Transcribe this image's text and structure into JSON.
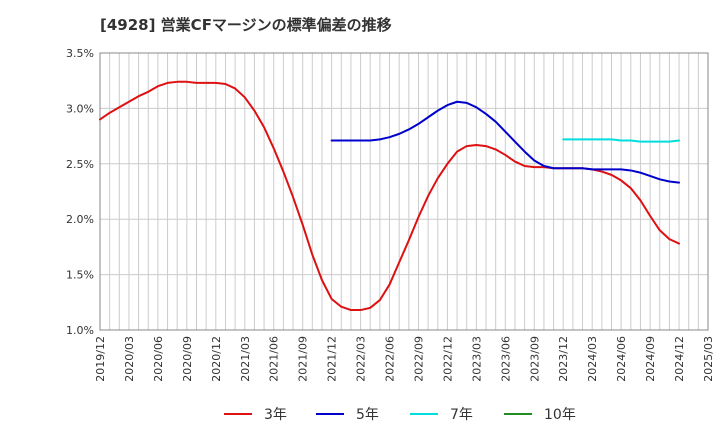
{
  "chart_data": {
    "type": "line",
    "title": "[4928]  営業CFマージンの標準偏差の推移",
    "xlabel": "",
    "ylabel": "",
    "ylim": [
      1.0,
      3.5
    ],
    "y_ticks": [
      "1.0%",
      "1.5%",
      "2.0%",
      "2.5%",
      "3.0%",
      "3.5%"
    ],
    "x_ticks": [
      "2019/12",
      "2020/03",
      "2020/06",
      "2020/09",
      "2020/12",
      "2021/03",
      "2021/06",
      "2021/09",
      "2021/12",
      "2022/03",
      "2022/06",
      "2022/09",
      "2022/12",
      "2023/03",
      "2023/06",
      "2023/09",
      "2023/12",
      "2024/03",
      "2024/06",
      "2024/09",
      "2024/12",
      "2025/03"
    ],
    "grid": true,
    "legend_position": "bottom",
    "series": [
      {
        "name": "3年",
        "color": "#dd1111",
        "points": [
          [
            "2019/12",
            2.9
          ],
          [
            "2020/01",
            2.96
          ],
          [
            "2020/02",
            3.01
          ],
          [
            "2020/03",
            3.06
          ],
          [
            "2020/04",
            3.11
          ],
          [
            "2020/05",
            3.15
          ],
          [
            "2020/06",
            3.2
          ],
          [
            "2020/07",
            3.23
          ],
          [
            "2020/08",
            3.24
          ],
          [
            "2020/09",
            3.24
          ],
          [
            "2020/10",
            3.23
          ],
          [
            "2020/11",
            3.23
          ],
          [
            "2020/12",
            3.23
          ],
          [
            "2021/01",
            3.22
          ],
          [
            "2021/02",
            3.18
          ],
          [
            "2021/03",
            3.1
          ],
          [
            "2021/04",
            2.98
          ],
          [
            "2021/05",
            2.83
          ],
          [
            "2021/06",
            2.64
          ],
          [
            "2021/07",
            2.43
          ],
          [
            "2021/08",
            2.2
          ],
          [
            "2021/09",
            1.95
          ],
          [
            "2021/10",
            1.68
          ],
          [
            "2021/11",
            1.45
          ],
          [
            "2021/12",
            1.28
          ],
          [
            "2022/01",
            1.21
          ],
          [
            "2022/02",
            1.18
          ],
          [
            "2022/03",
            1.18
          ],
          [
            "2022/04",
            1.2
          ],
          [
            "2022/05",
            1.27
          ],
          [
            "2022/06",
            1.41
          ],
          [
            "2022/07",
            1.61
          ],
          [
            "2022/08",
            1.81
          ],
          [
            "2022/09",
            2.02
          ],
          [
            "2022/10",
            2.21
          ],
          [
            "2022/11",
            2.37
          ],
          [
            "2022/12",
            2.5
          ],
          [
            "2023/01",
            2.61
          ],
          [
            "2023/02",
            2.66
          ],
          [
            "2023/03",
            2.67
          ],
          [
            "2023/04",
            2.66
          ],
          [
            "2023/05",
            2.63
          ],
          [
            "2023/06",
            2.58
          ],
          [
            "2023/07",
            2.52
          ],
          [
            "2023/08",
            2.48
          ],
          [
            "2023/09",
            2.47
          ],
          [
            "2023/10",
            2.47
          ],
          [
            "2023/11",
            2.46
          ],
          [
            "2023/12",
            2.46
          ],
          [
            "2024/01",
            2.46
          ],
          [
            "2024/02",
            2.46
          ],
          [
            "2024/03",
            2.45
          ],
          [
            "2024/04",
            2.43
          ],
          [
            "2024/05",
            2.4
          ],
          [
            "2024/06",
            2.35
          ],
          [
            "2024/07",
            2.28
          ],
          [
            "2024/08",
            2.17
          ],
          [
            "2024/09",
            2.03
          ],
          [
            "2024/10",
            1.9
          ],
          [
            "2024/11",
            1.82
          ],
          [
            "2024/12",
            1.78
          ]
        ]
      },
      {
        "name": "5年",
        "color": "#0000cc",
        "points": [
          [
            "2021/12",
            2.71
          ],
          [
            "2022/01",
            2.71
          ],
          [
            "2022/02",
            2.71
          ],
          [
            "2022/03",
            2.71
          ],
          [
            "2022/04",
            2.71
          ],
          [
            "2022/05",
            2.72
          ],
          [
            "2022/06",
            2.74
          ],
          [
            "2022/07",
            2.77
          ],
          [
            "2022/08",
            2.81
          ],
          [
            "2022/09",
            2.86
          ],
          [
            "2022/10",
            2.92
          ],
          [
            "2022/11",
            2.98
          ],
          [
            "2022/12",
            3.03
          ],
          [
            "2023/01",
            3.06
          ],
          [
            "2023/02",
            3.05
          ],
          [
            "2023/03",
            3.01
          ],
          [
            "2023/04",
            2.95
          ],
          [
            "2023/05",
            2.88
          ],
          [
            "2023/06",
            2.79
          ],
          [
            "2023/07",
            2.7
          ],
          [
            "2023/08",
            2.61
          ],
          [
            "2023/09",
            2.53
          ],
          [
            "2023/10",
            2.48
          ],
          [
            "2023/11",
            2.46
          ],
          [
            "2023/12",
            2.46
          ],
          [
            "2024/01",
            2.46
          ],
          [
            "2024/02",
            2.46
          ],
          [
            "2024/03",
            2.45
          ],
          [
            "2024/04",
            2.45
          ],
          [
            "2024/05",
            2.45
          ],
          [
            "2024/06",
            2.45
          ],
          [
            "2024/07",
            2.44
          ],
          [
            "2024/08",
            2.42
          ],
          [
            "2024/09",
            2.39
          ],
          [
            "2024/10",
            2.36
          ],
          [
            "2024/11",
            2.34
          ],
          [
            "2024/12",
            2.33
          ]
        ]
      },
      {
        "name": "7年",
        "color": "#00dddd",
        "points": [
          [
            "2023/12",
            2.72
          ],
          [
            "2024/01",
            2.72
          ],
          [
            "2024/02",
            2.72
          ],
          [
            "2024/03",
            2.72
          ],
          [
            "2024/04",
            2.72
          ],
          [
            "2024/05",
            2.72
          ],
          [
            "2024/06",
            2.71
          ],
          [
            "2024/07",
            2.71
          ],
          [
            "2024/08",
            2.7
          ],
          [
            "2024/09",
            2.7
          ],
          [
            "2024/10",
            2.7
          ],
          [
            "2024/11",
            2.7
          ],
          [
            "2024/12",
            2.71
          ]
        ]
      },
      {
        "name": "10年",
        "color": "#228b22",
        "points": []
      }
    ]
  }
}
